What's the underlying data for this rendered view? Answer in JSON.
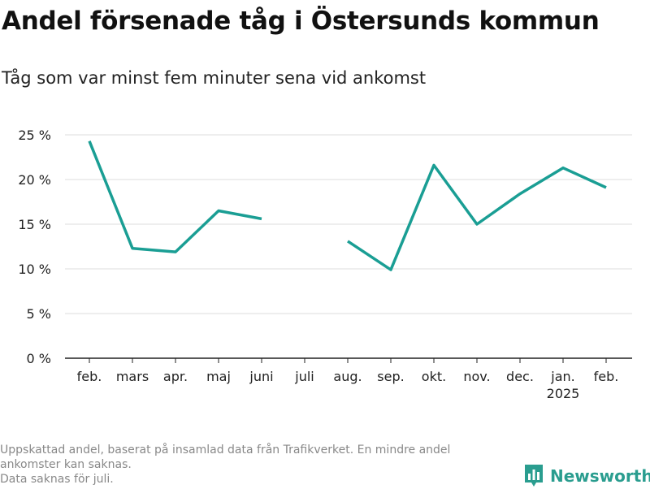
{
  "title": "Andel försenade tåg i Östersunds kommun",
  "subtitle": "Tåg som var minst fem minuter sena vid ankomst",
  "footnote": {
    "line1": "Uppskattad andel, baserat på insamlad data från Trafikverket. En mindre andel",
    "line2": "ankomster kan saknas.",
    "line3": "Data saknas för juli."
  },
  "brand": {
    "name": "Newsworthy",
    "icon": "bar-chart-logo-icon",
    "color": "#2a9d8f"
  },
  "chart_data": {
    "type": "line",
    "categories": [
      "feb.",
      "mars",
      "apr.",
      "maj",
      "juni",
      "juli",
      "aug.",
      "sep.",
      "okt.",
      "nov.",
      "dec.",
      "jan.",
      "feb."
    ],
    "category_sublabels": [
      "",
      "",
      "",
      "",
      "",
      "",
      "",
      "",
      "",
      "",
      "",
      "2025",
      ""
    ],
    "series": [
      {
        "values": [
          24.3,
          12.3,
          11.9,
          16.5,
          15.6,
          null,
          13.1,
          9.9,
          21.6,
          15.0,
          18.4,
          21.3,
          19.1
        ],
        "color": "#1a9e94"
      }
    ],
    "y_ticks": [
      0,
      5,
      10,
      15,
      20,
      25
    ],
    "y_tick_labels": [
      "0 %",
      "5 %",
      "10 %",
      "15 %",
      "20 %",
      "25 %"
    ],
    "ylim": [
      0,
      25
    ],
    "grid": true,
    "xlabel": "",
    "ylabel": ""
  }
}
